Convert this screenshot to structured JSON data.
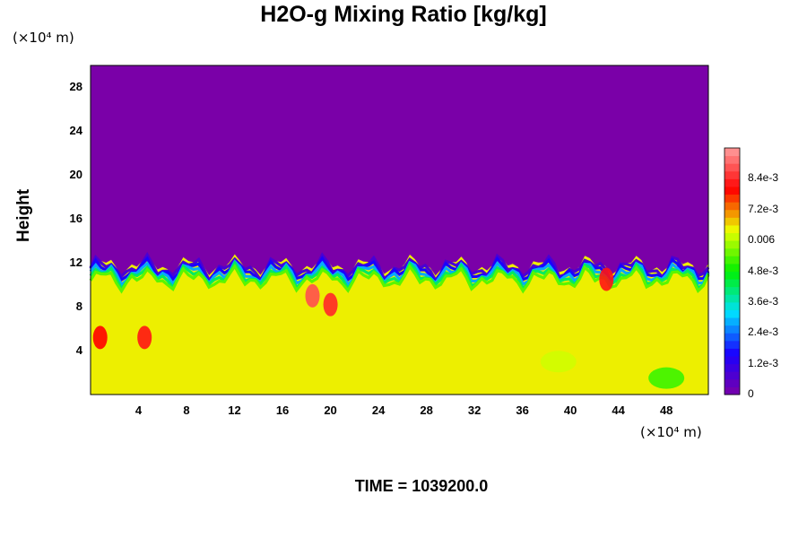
{
  "chart_data": {
    "type": "heatmap",
    "title": "H2O-g Mixing Ratio [kg/kg]",
    "ylabel": "Height",
    "y_unit": "(×10⁴ m)",
    "x_unit": "(×10⁴ m)",
    "x_ticks": [
      "4",
      "8",
      "12",
      "16",
      "20",
      "24",
      "28",
      "32",
      "36",
      "40",
      "44",
      "48"
    ],
    "y_ticks": [
      "4",
      "8",
      "12",
      "16",
      "20",
      "24",
      "28"
    ],
    "xlim": [
      0,
      51.5
    ],
    "ylim": [
      0,
      30
    ],
    "colorbar_labels": [
      "0",
      "1.2e-3",
      "2.4e-3",
      "3.6e-3",
      "4.8e-3",
      "0.006",
      "7.2e-3",
      "8.4e-3"
    ],
    "colorbar_range": [
      0,
      0.0096
    ],
    "background_value": 0.0065,
    "top_value": 0,
    "boundary_height": 11,
    "features": [
      {
        "x": 0.8,
        "y": 5.2,
        "value": 0.008
      },
      {
        "x": 4.5,
        "y": 5.2,
        "value": 0.0082
      },
      {
        "x": 18.5,
        "y": 9,
        "value": 0.0088
      },
      {
        "x": 20,
        "y": 8.2,
        "value": 0.0084
      },
      {
        "x": 48,
        "y": 1.5,
        "value": 0.0052
      },
      {
        "x": 39,
        "y": 3,
        "value": 0.0062
      },
      {
        "x": 43,
        "y": 10.5,
        "value": 0.0082
      }
    ],
    "colors": [
      "#7a00a8",
      "#1a00ff",
      "#00e0ff",
      "#00f000",
      "#ecff00",
      "#ff0000",
      "#ff9e9e"
    ]
  },
  "footer": {
    "time": "TIME = 1039200.0"
  }
}
